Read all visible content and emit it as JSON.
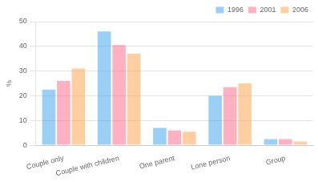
{
  "chart_data": {
    "type": "bar",
    "categories": [
      "Couple only",
      "Couple with children",
      "One parent",
      "Lone person",
      "Group"
    ],
    "series": [
      {
        "name": "1996",
        "values": [
          22.5,
          46.0,
          7.0,
          20.0,
          2.5
        ]
      },
      {
        "name": "2001",
        "values": [
          26.0,
          40.5,
          6.0,
          23.5,
          2.5
        ]
      },
      {
        "name": "2006",
        "values": [
          31.0,
          37.0,
          5.5,
          25.0,
          1.5
        ]
      }
    ],
    "ylabel": "%",
    "ylim": [
      0,
      50
    ],
    "yticks": [
      0,
      10,
      20,
      30,
      40,
      50
    ],
    "grid": true,
    "legend": "upper right"
  }
}
